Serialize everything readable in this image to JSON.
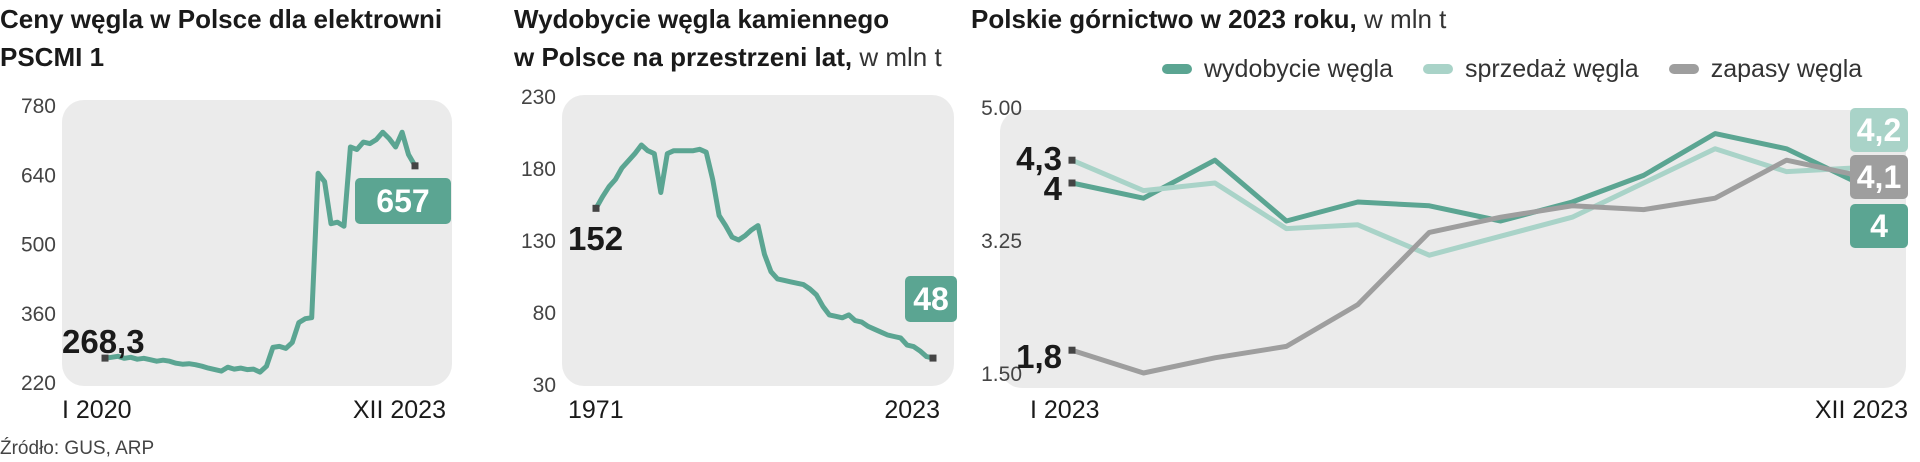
{
  "colors": {
    "primary": "#5ba592",
    "light": "#a9d3c8",
    "gray": "#9e9e9e",
    "panel": "#ebebeb"
  },
  "source": "Źródło: GUS, ARP",
  "chart_data": [
    {
      "type": "line",
      "title": "Ceny węgla w Polsce dla elektrowni PSCMI 1",
      "title_lines": [
        "Ceny węgla w Polsce dla elektrowni",
        "PSCMI 1"
      ],
      "unit": "",
      "ylim": [
        220,
        780
      ],
      "yticks": [
        "780",
        "640",
        "500",
        "360",
        "220"
      ],
      "xtick_labels": [
        "I 2020",
        "XII 2023"
      ],
      "start_label": "268,3",
      "end_label": "657",
      "series": [
        {
          "values": [
            268.3,
            270,
            272,
            268,
            270,
            266,
            268,
            265,
            262,
            264,
            262,
            258,
            256,
            257,
            255,
            252,
            248,
            245,
            242,
            250,
            246,
            248,
            245,
            246,
            240,
            252,
            290,
            292,
            288,
            300,
            340,
            348,
            350,
            642,
            625,
            540,
            543,
            535,
            695,
            690,
            705,
            702,
            710,
            725,
            712,
            695,
            725,
            680,
            657
          ]
        }
      ]
    },
    {
      "type": "line",
      "title": "Wydobycie węgla kamiennego w Polsce na przestrzeni lat, w mln t",
      "title_lines": [
        "Wydobycie węgla kamiennego",
        "w Polsce na przestrzeni lat,"
      ],
      "unit": "w mln t",
      "ylim": [
        30,
        230
      ],
      "yticks": [
        "230",
        "180",
        "130",
        "80",
        "30"
      ],
      "xtick_labels": [
        "1971",
        "2023"
      ],
      "start_label": "152",
      "end_label": "48",
      "series": [
        {
          "values": [
            152,
            160,
            167,
            172,
            180,
            185,
            190,
            196,
            192,
            190,
            163,
            190,
            192,
            192,
            192,
            192,
            193,
            191,
            172,
            147,
            140,
            132,
            130,
            133,
            137,
            140,
            120,
            108,
            103,
            102,
            101,
            100,
            99,
            96,
            92,
            84,
            78,
            77,
            76,
            78,
            74,
            73,
            70,
            68,
            66,
            64,
            63,
            62,
            57,
            56,
            53,
            49,
            48
          ]
        }
      ]
    },
    {
      "type": "line",
      "title": "Polskie górnictwo w 2023 roku, w mln t",
      "title_lines": [
        "Polskie górnictwo w 2023 roku,"
      ],
      "unit": "w mln t",
      "ylim": [
        1.5,
        5.0
      ],
      "yticks": [
        "5.00",
        "3.25",
        "1.50"
      ],
      "xtick_labels": [
        "I 2023",
        "XII 2023"
      ],
      "series": [
        {
          "name": "wydobycie węgla",
          "color": "#5ba592",
          "values": [
            4.0,
            3.8,
            4.3,
            3.5,
            3.75,
            3.7,
            3.5,
            3.75,
            4.1,
            4.65,
            4.45,
            4.0
          ],
          "start_label": "4",
          "end_label": "4"
        },
        {
          "name": "sprzedaż węgla",
          "color": "#a9d3c8",
          "values": [
            4.3,
            3.9,
            4.0,
            3.4,
            3.45,
            3.05,
            3.3,
            3.55,
            4.0,
            4.45,
            4.15,
            4.2
          ],
          "start_label": "4,3",
          "end_label": "4,2"
        },
        {
          "name": "zapasy węgla",
          "color": "#9e9e9e",
          "values": [
            1.8,
            1.5,
            1.7,
            1.85,
            2.4,
            3.35,
            3.55,
            3.7,
            3.65,
            3.8,
            4.3,
            4.1
          ],
          "start_label": "1,8",
          "end_label": "4,1"
        }
      ]
    }
  ]
}
